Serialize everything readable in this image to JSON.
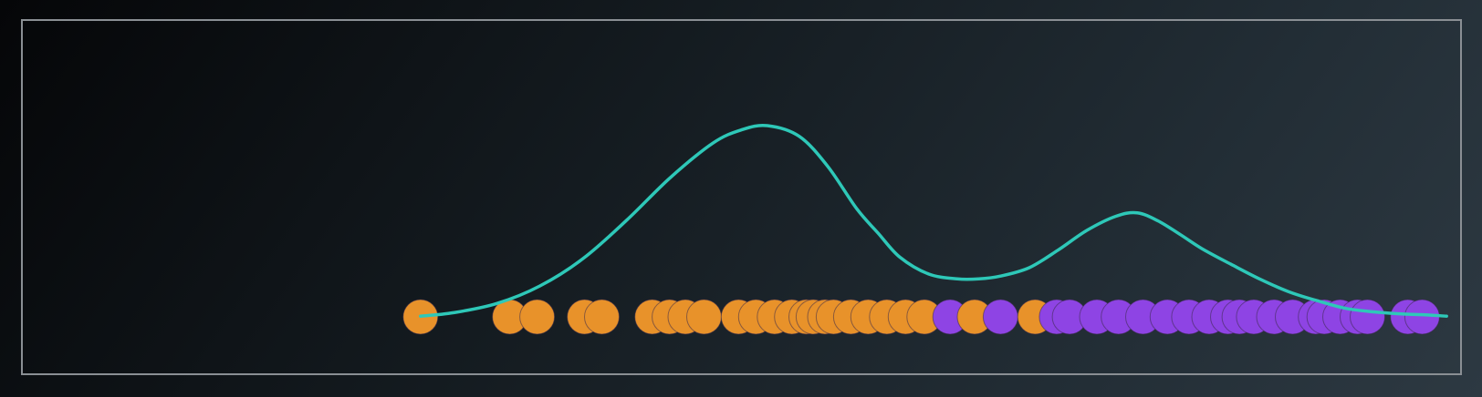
{
  "chart_data": {
    "type": "scatter",
    "title": "",
    "xlabel": "",
    "ylabel": "",
    "xlim": [
      0,
      100
    ],
    "grid": false,
    "legend": "none",
    "frame_color": "#8a8f94",
    "series": [
      {
        "color": "#e8922a",
        "x": [
          27.7,
          33.9,
          35.8,
          39.1,
          40.3,
          43.8,
          45.0,
          46.1,
          47.4,
          49.8,
          51.0,
          52.3,
          53.5,
          54.5,
          55.0,
          55.8,
          56.4,
          57.6,
          58.8,
          60.1,
          61.4,
          62.7,
          66.2,
          70.4
        ]
      },
      {
        "color": "#8e44e4",
        "x": [
          64.5,
          68.0,
          71.9,
          72.8,
          74.7,
          76.2,
          77.9,
          79.6,
          81.1,
          82.5,
          83.8,
          84.6,
          85.6,
          87.0,
          88.3,
          89.9,
          90.5,
          91.6,
          92.8,
          93.5,
          96.3,
          97.3
        ]
      }
    ],
    "density_curve": {
      "color": "#2ec8b8",
      "x": [
        27.7,
        30,
        33,
        36,
        39,
        42,
        45,
        48,
        50,
        51.8,
        54,
        56,
        58,
        59.5,
        61,
        63,
        65,
        66.5,
        68,
        70,
        72,
        74,
        76,
        77.5,
        79,
        80.5,
        82,
        84,
        86,
        88,
        90,
        92,
        94,
        96,
        97.5,
        99
      ],
      "y": [
        0.1,
        0.6,
        1.9,
        4.4,
        8.3,
        13.7,
        19.7,
        24.7,
        26.6,
        27.2,
        25.7,
        21.4,
        15.4,
        11.9,
        8.5,
        6.1,
        5.4,
        5.4,
        5.8,
        7.0,
        9.5,
        12.3,
        14.3,
        14.8,
        13.6,
        11.7,
        9.7,
        7.5,
        5.4,
        3.6,
        2.3,
        1.2,
        0.7,
        0.4,
        0.3,
        0.1
      ],
      "ylim": [
        0,
        30
      ]
    }
  }
}
